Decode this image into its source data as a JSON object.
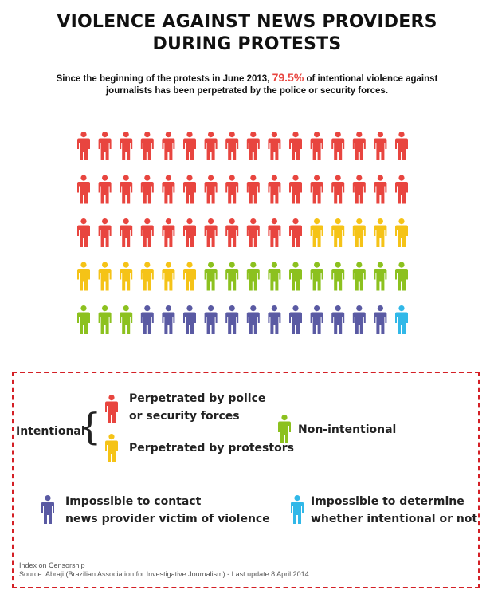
{
  "title_line1": "VIOLENCE AGAINST NEWS PROVIDERS",
  "title_line2": "DURING PROTESTS",
  "subtitle_before": "Since the beginning of the protests in June 2013, ",
  "subtitle_pct": "79.5%",
  "subtitle_after": " of intentional violence against journalists has been perpetrated by the police or security forces.",
  "colors": {
    "police": "#e8453f",
    "protestors": "#f5c317",
    "non_intentional": "#8cc11f",
    "impossible_contact": "#5a5aa3",
    "impossible_determine": "#31b8e8",
    "frame": "#d42026"
  },
  "chart_data": {
    "type": "pictogram",
    "columns": 16,
    "total": 80,
    "categories": [
      {
        "key": "police",
        "label": "Perpetrated by police or security forces",
        "count": 43
      },
      {
        "key": "protestors",
        "label": "Perpetrated by protestors",
        "count": 11
      },
      {
        "key": "non_intentional",
        "label": "Non-intentional",
        "count": 13
      },
      {
        "key": "impossible_contact",
        "label": "Impossible to contact news provider victim of violence",
        "count": 12
      },
      {
        "key": "impossible_determine",
        "label": "Impossible to determine whether intentional or not",
        "count": 1
      }
    ]
  },
  "legend": {
    "intentional": "Intentional",
    "police_line1": "Perpetrated by police",
    "police_line2": "or security forces",
    "protestors": "Perpetrated by protestors",
    "non_intentional": "Non-intentional",
    "contact_line1": "Impossible to contact",
    "contact_line2": "news provider victim of violence",
    "determine_line1": "Impossible to determine",
    "determine_line2": "whether intentional or not"
  },
  "source_line1": "Index on Censorship",
  "source_line2": "Source: Abraji (Brazilian Association for Investigative Journalism) - Last update 8 April 2014"
}
